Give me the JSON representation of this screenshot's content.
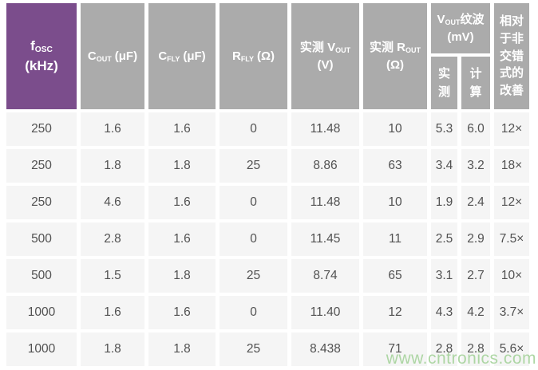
{
  "colors": {
    "header_purple": "#7b4d8c",
    "header_gray": "#ababab",
    "row_bg": "#f5f5f5",
    "data_text": "#515151",
    "watermark_green": "#aad5a0"
  },
  "table": {
    "header": {
      "fosc": {
        "symbol": "f",
        "sub": "OSC",
        "line2": "(kHz)"
      },
      "cout": {
        "symbol": "C",
        "sub": "OUT",
        "unit": "(μF)"
      },
      "cfly": {
        "symbol": "C",
        "sub": "FLY",
        "unit": "(μF)"
      },
      "rfly": {
        "symbol": "R",
        "sub": "FLY",
        "unit": "(Ω)"
      },
      "vout": {
        "pre": "实测 V",
        "sub": "OUT",
        "line2": "(V)"
      },
      "rout": {
        "pre": "实测 R",
        "sub": "OUT",
        "line2": "(Ω)"
      },
      "ripple": {
        "pre": "V",
        "sub": "OUT",
        "post": "纹波 (mV)"
      },
      "ripple_measured": "实测",
      "ripple_calculated": "计算",
      "improvement": "相对于非交错式的改善"
    },
    "rows": [
      [
        "250",
        "1.6",
        "1.6",
        "0",
        "11.48",
        "10",
        "5.3",
        "6.0",
        "12×"
      ],
      [
        "250",
        "1.8",
        "1.8",
        "25",
        "8.86",
        "63",
        "3.4",
        "3.2",
        "18×"
      ],
      [
        "250",
        "4.6",
        "1.6",
        "0",
        "11.48",
        "10",
        "1.9",
        "2.4",
        "12×"
      ],
      [
        "500",
        "2.8",
        "1.6",
        "0",
        "11.45",
        "11",
        "2.5",
        "2.9",
        "7.5×"
      ],
      [
        "500",
        "1.5",
        "1.8",
        "25",
        "8.74",
        "65",
        "3.1",
        "2.7",
        "10×"
      ],
      [
        "1000",
        "1.6",
        "1.6",
        "0",
        "11.40",
        "12",
        "4.3",
        "4.2",
        "3.7×"
      ],
      [
        "1000",
        "1.8",
        "1.8",
        "25",
        "8.438",
        "71",
        "2.8",
        "2.8",
        "5.6×"
      ]
    ]
  },
  "watermark": "www.cntronics.com",
  "chart_data": {
    "type": "table",
    "columns": [
      "fOSC (kHz)",
      "COUT (μF)",
      "CFLY (μF)",
      "RFLY (Ω)",
      "实测 VOUT (V)",
      "实测 ROUT (Ω)",
      "VOUT纹波 (mV) 实测",
      "VOUT纹波 (mV) 计算",
      "相对于非交错式的改善"
    ],
    "rows": [
      [
        250,
        1.6,
        1.6,
        0,
        11.48,
        10,
        5.3,
        6.0,
        "12×"
      ],
      [
        250,
        1.8,
        1.8,
        25,
        8.86,
        63,
        3.4,
        3.2,
        "18×"
      ],
      [
        250,
        4.6,
        1.6,
        0,
        11.48,
        10,
        1.9,
        2.4,
        "12×"
      ],
      [
        500,
        2.8,
        1.6,
        0,
        11.45,
        11,
        2.5,
        2.9,
        "7.5×"
      ],
      [
        500,
        1.5,
        1.8,
        25,
        8.74,
        65,
        3.1,
        2.7,
        "10×"
      ],
      [
        1000,
        1.6,
        1.6,
        0,
        11.4,
        12,
        4.3,
        4.2,
        "3.7×"
      ],
      [
        1000,
        1.8,
        1.8,
        25,
        8.438,
        71,
        2.8,
        2.8,
        "5.6×"
      ]
    ]
  }
}
